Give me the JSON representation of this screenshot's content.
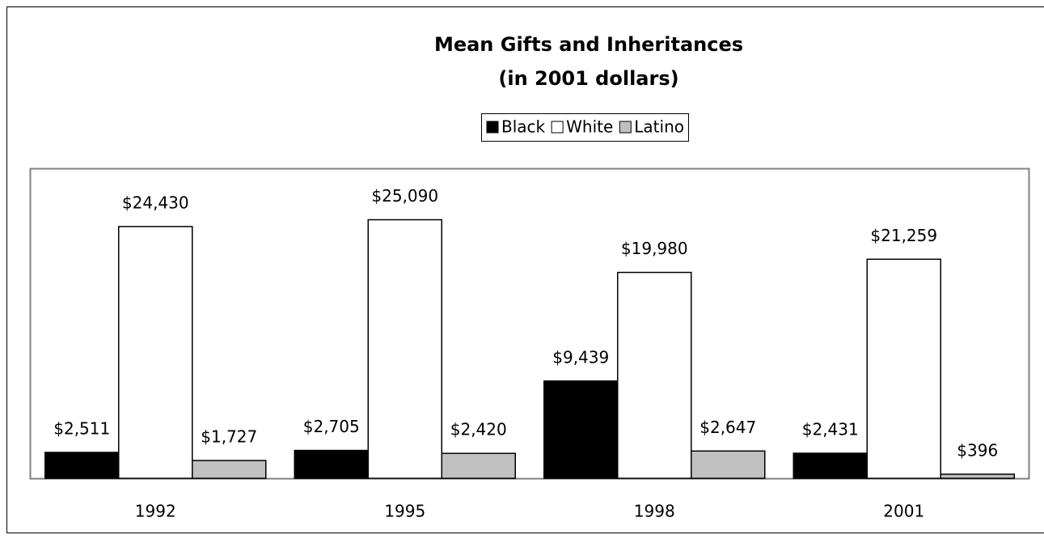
{
  "chart_data": {
    "type": "bar",
    "title": "Mean Gifts and Inheritances",
    "subtitle": "(in 2001 dollars)",
    "categories": [
      "1992",
      "1995",
      "1998",
      "2001"
    ],
    "series": [
      {
        "name": "Black",
        "color": "#000000",
        "values": [
          2511,
          2705,
          9439,
          2431
        ],
        "value_labels": [
          "$2,511",
          "$2,705",
          "$9,439",
          "$2,431"
        ]
      },
      {
        "name": "White",
        "color": "#ffffff",
        "values": [
          24430,
          25090,
          19980,
          21259
        ],
        "value_labels": [
          "$24,430",
          "$25,090",
          "$19,980",
          "$21,259"
        ]
      },
      {
        "name": "Latino",
        "color": "#c0c0c0",
        "values": [
          1727,
          2420,
          2647,
          396
        ],
        "value_labels": [
          "$1,727",
          "$2,420",
          "$2,647",
          "$396"
        ]
      }
    ],
    "ylim": [
      0,
      30000
    ],
    "legend": "top"
  }
}
